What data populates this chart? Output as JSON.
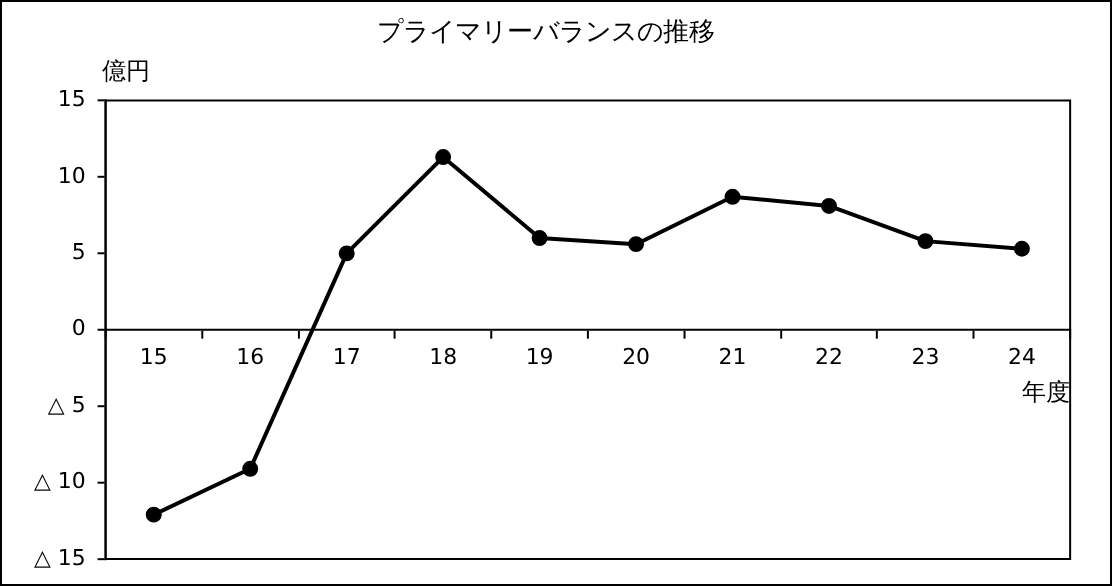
{
  "chart_data": {
    "type": "line",
    "title": "プライマリーバランスの推移",
    "ylabel": "億円",
    "xlabel": "年度",
    "categories": [
      "15",
      "16",
      "17",
      "18",
      "19",
      "20",
      "21",
      "22",
      "23",
      "24"
    ],
    "series": [
      {
        "color": "#000000",
        "values": [
          -12.1,
          -9.1,
          5.0,
          11.3,
          6.0,
          5.6,
          8.7,
          8.1,
          5.8,
          5.3
        ]
      }
    ],
    "ylim": [
      -15,
      15
    ],
    "yticks": [
      {
        "value": -15,
        "label": "△ 15"
      },
      {
        "value": -10,
        "label": "△ 10"
      },
      {
        "value": -5,
        "label": "△ 5"
      },
      0,
      5,
      10,
      15
    ],
    "grid": false,
    "legend": false,
    "marker": "circle",
    "line_style": "solid"
  }
}
